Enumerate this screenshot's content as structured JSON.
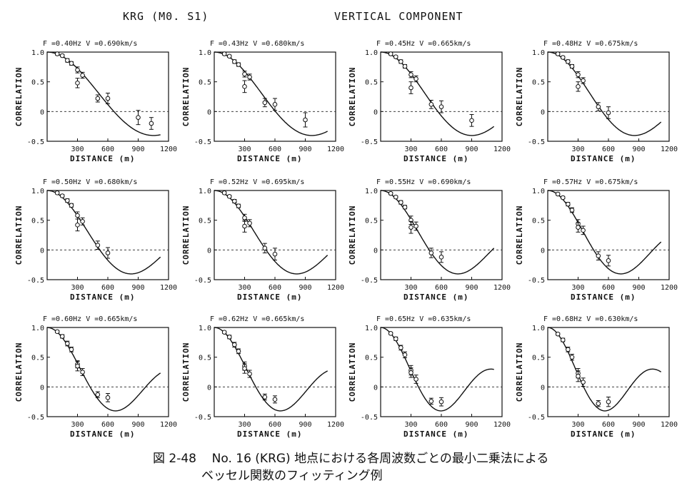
{
  "header": {
    "left": "KRG (M0. S1)",
    "right": "VERTICAL COMPONENT"
  },
  "caption": {
    "label": "図 2-48",
    "line1": "No. 16 (KRG) 地点における各周波数ごとの最小二乗法による",
    "line2": "ベッセル関数のフィッティング例"
  },
  "chart_data": [
    {
      "type": "scatter",
      "title": "F =0.40Hz  V =0.690km/s",
      "xlabel": "DISTANCE (m)",
      "ylabel": "CORRELATION",
      "xlim": [
        0,
        1200
      ],
      "ylim": [
        -0.5,
        1.0
      ],
      "xticks": [
        "300",
        "600",
        "900",
        "1200"
      ],
      "yticks": [
        "1.0",
        "0.5",
        "0",
        "-0.5"
      ],
      "freq_hz": 0.4,
      "velocity_kms": 0.69,
      "curve_xmax": 1120,
      "points": [
        {
          "x": 100,
          "y": 0.97,
          "err": 0.02
        },
        {
          "x": 150,
          "y": 0.94,
          "err": 0.02
        },
        {
          "x": 200,
          "y": 0.86,
          "err": 0.03
        },
        {
          "x": 240,
          "y": 0.81,
          "err": 0.03
        },
        {
          "x": 300,
          "y": 0.7,
          "err": 0.05
        },
        {
          "x": 300,
          "y": 0.48,
          "err": 0.08
        },
        {
          "x": 350,
          "y": 0.61,
          "err": 0.05
        },
        {
          "x": 500,
          "y": 0.22,
          "err": 0.06
        },
        {
          "x": 600,
          "y": 0.22,
          "err": 0.09
        },
        {
          "x": 900,
          "y": -0.1,
          "err": 0.12
        },
        {
          "x": 1030,
          "y": -0.2,
          "err": 0.1
        }
      ]
    },
    {
      "type": "scatter",
      "title": "F =0.43Hz  V =0.680km/s",
      "xlabel": "DISTANCE (m)",
      "ylabel": "CORRELATION",
      "xlim": [
        0,
        1200
      ],
      "ylim": [
        -0.5,
        1.0
      ],
      "xticks": [
        "300",
        "600",
        "900",
        "1200"
      ],
      "yticks": [
        "1.0",
        "0.5",
        "0",
        "-0.5"
      ],
      "freq_hz": 0.43,
      "velocity_kms": 0.68,
      "curve_xmax": 1120,
      "points": [
        {
          "x": 100,
          "y": 0.97,
          "err": 0.02
        },
        {
          "x": 150,
          "y": 0.93,
          "err": 0.02
        },
        {
          "x": 200,
          "y": 0.84,
          "err": 0.03
        },
        {
          "x": 240,
          "y": 0.79,
          "err": 0.03
        },
        {
          "x": 300,
          "y": 0.63,
          "err": 0.05
        },
        {
          "x": 300,
          "y": 0.42,
          "err": 0.1
        },
        {
          "x": 350,
          "y": 0.58,
          "err": 0.05
        },
        {
          "x": 500,
          "y": 0.15,
          "err": 0.07
        },
        {
          "x": 600,
          "y": 0.12,
          "err": 0.1
        },
        {
          "x": 900,
          "y": -0.14,
          "err": 0.12
        }
      ]
    },
    {
      "type": "scatter",
      "title": "F =0.45Hz  V =0.665km/s",
      "xlabel": "DISTANCE (m)",
      "ylabel": "CORRELATION",
      "xlim": [
        0,
        1200
      ],
      "ylim": [
        -0.5,
        1.0
      ],
      "xticks": [
        "300",
        "600",
        "900",
        "1200"
      ],
      "yticks": [
        "1.0",
        "0.5",
        "0",
        "-0.5"
      ],
      "freq_hz": 0.45,
      "velocity_kms": 0.665,
      "curve_xmax": 1120,
      "points": [
        {
          "x": 100,
          "y": 0.97,
          "err": 0.02
        },
        {
          "x": 150,
          "y": 0.92,
          "err": 0.02
        },
        {
          "x": 200,
          "y": 0.84,
          "err": 0.03
        },
        {
          "x": 240,
          "y": 0.76,
          "err": 0.03
        },
        {
          "x": 300,
          "y": 0.62,
          "err": 0.05
        },
        {
          "x": 300,
          "y": 0.4,
          "err": 0.1
        },
        {
          "x": 350,
          "y": 0.55,
          "err": 0.05
        },
        {
          "x": 500,
          "y": 0.12,
          "err": 0.07
        },
        {
          "x": 600,
          "y": 0.08,
          "err": 0.1
        },
        {
          "x": 900,
          "y": -0.15,
          "err": 0.1
        }
      ]
    },
    {
      "type": "scatter",
      "title": "F =0.48Hz  V =0.675km/s",
      "xlabel": "DISTANCE (m)",
      "ylabel": "CORRELATION",
      "xlim": [
        0,
        1200
      ],
      "ylim": [
        -0.5,
        1.0
      ],
      "xticks": [
        "300",
        "600",
        "900",
        "1200"
      ],
      "yticks": [
        "1.0",
        "0.5",
        "0",
        "-0.5"
      ],
      "freq_hz": 0.48,
      "velocity_kms": 0.675,
      "curve_xmax": 1120,
      "points": [
        {
          "x": 100,
          "y": 0.97,
          "err": 0.02
        },
        {
          "x": 150,
          "y": 0.91,
          "err": 0.02
        },
        {
          "x": 200,
          "y": 0.84,
          "err": 0.03
        },
        {
          "x": 240,
          "y": 0.76,
          "err": 0.03
        },
        {
          "x": 300,
          "y": 0.62,
          "err": 0.05
        },
        {
          "x": 300,
          "y": 0.42,
          "err": 0.08
        },
        {
          "x": 350,
          "y": 0.52,
          "err": 0.05
        },
        {
          "x": 500,
          "y": 0.08,
          "err": 0.07
        },
        {
          "x": 600,
          "y": -0.02,
          "err": 0.1
        }
      ]
    },
    {
      "type": "scatter",
      "title": "F =0.50Hz  V =0.680km/s",
      "xlabel": "DISTANCE (m)",
      "ylabel": "CORRELATION",
      "xlim": [
        0,
        1200
      ],
      "ylim": [
        -0.5,
        1.0
      ],
      "xticks": [
        "300",
        "600",
        "900",
        "1200"
      ],
      "yticks": [
        "1.0",
        "0.5",
        "0",
        "-0.5"
      ],
      "freq_hz": 0.5,
      "velocity_kms": 0.68,
      "curve_xmax": 1120,
      "points": [
        {
          "x": 100,
          "y": 0.96,
          "err": 0.02
        },
        {
          "x": 150,
          "y": 0.91,
          "err": 0.02
        },
        {
          "x": 200,
          "y": 0.83,
          "err": 0.03
        },
        {
          "x": 240,
          "y": 0.75,
          "err": 0.03
        },
        {
          "x": 300,
          "y": 0.58,
          "err": 0.06
        },
        {
          "x": 300,
          "y": 0.42,
          "err": 0.1
        },
        {
          "x": 350,
          "y": 0.48,
          "err": 0.06
        },
        {
          "x": 500,
          "y": 0.08,
          "err": 0.07
        },
        {
          "x": 600,
          "y": -0.05,
          "err": 0.09
        }
      ]
    },
    {
      "type": "scatter",
      "title": "F =0.52Hz  V =0.695km/s",
      "xlabel": "DISTANCE (m)",
      "ylabel": "CORRELATION",
      "xlim": [
        0,
        1200
      ],
      "ylim": [
        -0.5,
        1.0
      ],
      "xticks": [
        "300",
        "600",
        "900",
        "1200"
      ],
      "yticks": [
        "1.0",
        "0.5",
        "0",
        "-0.5"
      ],
      "freq_hz": 0.52,
      "velocity_kms": 0.695,
      "curve_xmax": 1120,
      "points": [
        {
          "x": 100,
          "y": 0.96,
          "err": 0.02
        },
        {
          "x": 150,
          "y": 0.9,
          "err": 0.02
        },
        {
          "x": 200,
          "y": 0.82,
          "err": 0.03
        },
        {
          "x": 240,
          "y": 0.74,
          "err": 0.03
        },
        {
          "x": 300,
          "y": 0.54,
          "err": 0.06
        },
        {
          "x": 300,
          "y": 0.4,
          "err": 0.1
        },
        {
          "x": 350,
          "y": 0.45,
          "err": 0.06
        },
        {
          "x": 500,
          "y": 0.03,
          "err": 0.08
        },
        {
          "x": 600,
          "y": -0.07,
          "err": 0.1
        }
      ]
    },
    {
      "type": "scatter",
      "title": "F =0.55Hz  V =0.690km/s",
      "xlabel": "DISTANCE (m)",
      "ylabel": "CORRELATION",
      "xlim": [
        0,
        1200
      ],
      "ylim": [
        -0.5,
        1.0
      ],
      "xticks": [
        "300",
        "600",
        "900",
        "1200"
      ],
      "yticks": [
        "1.0",
        "0.5",
        "0",
        "-0.5"
      ],
      "freq_hz": 0.55,
      "velocity_kms": 0.69,
      "curve_xmax": 1120,
      "points": [
        {
          "x": 100,
          "y": 0.95,
          "err": 0.02
        },
        {
          "x": 150,
          "y": 0.89,
          "err": 0.02
        },
        {
          "x": 200,
          "y": 0.8,
          "err": 0.03
        },
        {
          "x": 240,
          "y": 0.72,
          "err": 0.03
        },
        {
          "x": 300,
          "y": 0.5,
          "err": 0.07
        },
        {
          "x": 300,
          "y": 0.38,
          "err": 0.1
        },
        {
          "x": 350,
          "y": 0.4,
          "err": 0.07
        },
        {
          "x": 500,
          "y": -0.05,
          "err": 0.08
        },
        {
          "x": 600,
          "y": -0.12,
          "err": 0.09
        }
      ]
    },
    {
      "type": "scatter",
      "title": "F =0.57Hz  V =0.675km/s",
      "xlabel": "DISTANCE (m)",
      "ylabel": "CORRELATION",
      "xlim": [
        0,
        1200
      ],
      "ylim": [
        -0.5,
        1.0
      ],
      "xticks": [
        "300",
        "600",
        "900",
        "1200"
      ],
      "yticks": [
        "1.0",
        "0.5",
        "0",
        "-0.5"
      ],
      "freq_hz": 0.57,
      "velocity_kms": 0.675,
      "curve_xmax": 1120,
      "points": [
        {
          "x": 100,
          "y": 0.94,
          "err": 0.02
        },
        {
          "x": 150,
          "y": 0.88,
          "err": 0.02
        },
        {
          "x": 200,
          "y": 0.77,
          "err": 0.03
        },
        {
          "x": 240,
          "y": 0.67,
          "err": 0.04
        },
        {
          "x": 300,
          "y": 0.44,
          "err": 0.07
        },
        {
          "x": 300,
          "y": 0.38,
          "err": 0.08
        },
        {
          "x": 350,
          "y": 0.33,
          "err": 0.07
        },
        {
          "x": 500,
          "y": -0.1,
          "err": 0.07
        },
        {
          "x": 600,
          "y": -0.18,
          "err": 0.09
        }
      ]
    },
    {
      "type": "scatter",
      "title": "F =0.60Hz  V =0.665km/s",
      "xlabel": "DISTANCE (m)",
      "ylabel": "CORRELATION",
      "xlim": [
        0,
        1200
      ],
      "ylim": [
        -0.5,
        1.0
      ],
      "xticks": [
        "300",
        "600",
        "900",
        "1200"
      ],
      "yticks": [
        "1.0",
        "0.5",
        "0",
        "-0.5"
      ],
      "freq_hz": 0.6,
      "velocity_kms": 0.665,
      "curve_xmax": 1120,
      "points": [
        {
          "x": 100,
          "y": 0.93,
          "err": 0.02
        },
        {
          "x": 150,
          "y": 0.85,
          "err": 0.03
        },
        {
          "x": 200,
          "y": 0.73,
          "err": 0.04
        },
        {
          "x": 240,
          "y": 0.63,
          "err": 0.04
        },
        {
          "x": 300,
          "y": 0.38,
          "err": 0.06
        },
        {
          "x": 300,
          "y": 0.35,
          "err": 0.08
        },
        {
          "x": 350,
          "y": 0.25,
          "err": 0.06
        },
        {
          "x": 500,
          "y": -0.13,
          "err": 0.05
        },
        {
          "x": 600,
          "y": -0.18,
          "err": 0.07
        }
      ]
    },
    {
      "type": "scatter",
      "title": "F =0.62Hz  V =0.665km/s",
      "xlabel": "DISTANCE (m)",
      "ylabel": "CORRELATION",
      "xlim": [
        0,
        1200
      ],
      "ylim": [
        -0.5,
        1.0
      ],
      "xticks": [
        "300",
        "600",
        "900",
        "1200"
      ],
      "yticks": [
        "1.0",
        "0.5",
        "0",
        "-0.5"
      ],
      "freq_hz": 0.62,
      "velocity_kms": 0.665,
      "curve_xmax": 1120,
      "points": [
        {
          "x": 100,
          "y": 0.92,
          "err": 0.02
        },
        {
          "x": 150,
          "y": 0.84,
          "err": 0.03
        },
        {
          "x": 200,
          "y": 0.71,
          "err": 0.04
        },
        {
          "x": 240,
          "y": 0.6,
          "err": 0.04
        },
        {
          "x": 300,
          "y": 0.35,
          "err": 0.07
        },
        {
          "x": 300,
          "y": 0.31,
          "err": 0.08
        },
        {
          "x": 350,
          "y": 0.22,
          "err": 0.06
        },
        {
          "x": 500,
          "y": -0.17,
          "err": 0.05
        },
        {
          "x": 600,
          "y": -0.21,
          "err": 0.06
        }
      ]
    },
    {
      "type": "scatter",
      "title": "F =0.65Hz  V =0.635km/s",
      "xlabel": "DISTANCE (m)",
      "ylabel": "CORRELATION",
      "xlim": [
        0,
        1200
      ],
      "ylim": [
        -0.5,
        1.0
      ],
      "xticks": [
        "300",
        "600",
        "900",
        "1200"
      ],
      "yticks": [
        "1.0",
        "0.5",
        "0",
        "-0.5"
      ],
      "freq_hz": 0.65,
      "velocity_kms": 0.635,
      "curve_xmax": 1120,
      "points": [
        {
          "x": 100,
          "y": 0.9,
          "err": 0.02
        },
        {
          "x": 150,
          "y": 0.81,
          "err": 0.03
        },
        {
          "x": 200,
          "y": 0.66,
          "err": 0.04
        },
        {
          "x": 240,
          "y": 0.54,
          "err": 0.05
        },
        {
          "x": 300,
          "y": 0.28,
          "err": 0.08
        },
        {
          "x": 300,
          "y": 0.24,
          "err": 0.08
        },
        {
          "x": 350,
          "y": 0.13,
          "err": 0.07
        },
        {
          "x": 500,
          "y": -0.24,
          "err": 0.05
        },
        {
          "x": 600,
          "y": -0.25,
          "err": 0.07
        }
      ]
    },
    {
      "type": "scatter",
      "title": "F =0.68Hz  V =0.630km/s",
      "xlabel": "DISTANCE (m)",
      "ylabel": "CORRELATION",
      "xlim": [
        0,
        1200
      ],
      "ylim": [
        -0.5,
        1.0
      ],
      "xticks": [
        "300",
        "600",
        "900",
        "1200"
      ],
      "yticks": [
        "1.0",
        "0.5",
        "0",
        "-0.5"
      ],
      "freq_hz": 0.68,
      "velocity_kms": 0.63,
      "curve_xmax": 1120,
      "points": [
        {
          "x": 100,
          "y": 0.89,
          "err": 0.02
        },
        {
          "x": 150,
          "y": 0.79,
          "err": 0.03
        },
        {
          "x": 200,
          "y": 0.63,
          "err": 0.04
        },
        {
          "x": 240,
          "y": 0.5,
          "err": 0.05
        },
        {
          "x": 300,
          "y": 0.23,
          "err": 0.08
        },
        {
          "x": 300,
          "y": 0.18,
          "err": 0.09
        },
        {
          "x": 350,
          "y": 0.08,
          "err": 0.07
        },
        {
          "x": 500,
          "y": -0.28,
          "err": 0.05
        },
        {
          "x": 600,
          "y": -0.25,
          "err": 0.08
        }
      ]
    }
  ]
}
